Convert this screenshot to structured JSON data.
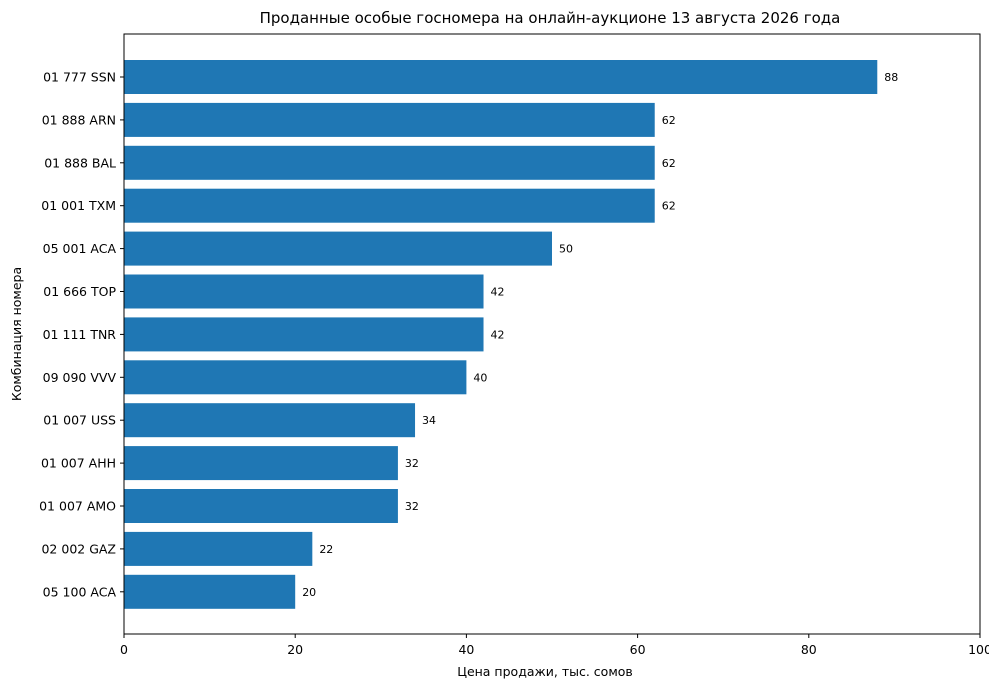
{
  "chart_data": {
    "type": "bar",
    "orientation": "horizontal",
    "title": "Проданные особые госномера на онлайн-аукционе 13 августа 2026 года",
    "xlabel": "Цена продажи, тыс. сомов",
    "ylabel": "Комбинация номера",
    "xlim": [
      0,
      100
    ],
    "xticks": [
      0,
      20,
      40,
      60,
      80,
      100
    ],
    "grid": false,
    "legend": "none",
    "bar_color": "#1f77b4",
    "categories": [
      "01 777 SSN",
      "01 888 ARN",
      "01 888 BAL",
      "01 001 TXM",
      "05 001 ACA",
      "01 666 TOP",
      "01 111 TNR",
      "09 090 VVV",
      "01 007 USS",
      "01 007 AHH",
      "01 007 AMO",
      "02 002 GAZ",
      "05 100 ACA"
    ],
    "values": [
      88,
      62,
      62,
      62,
      50,
      42,
      42,
      40,
      34,
      32,
      32,
      22,
      20
    ],
    "data_labels": [
      "88",
      "62",
      "62",
      "62",
      "50",
      "42",
      "42",
      "40",
      "34",
      "32",
      "32",
      "22",
      "20"
    ]
  }
}
